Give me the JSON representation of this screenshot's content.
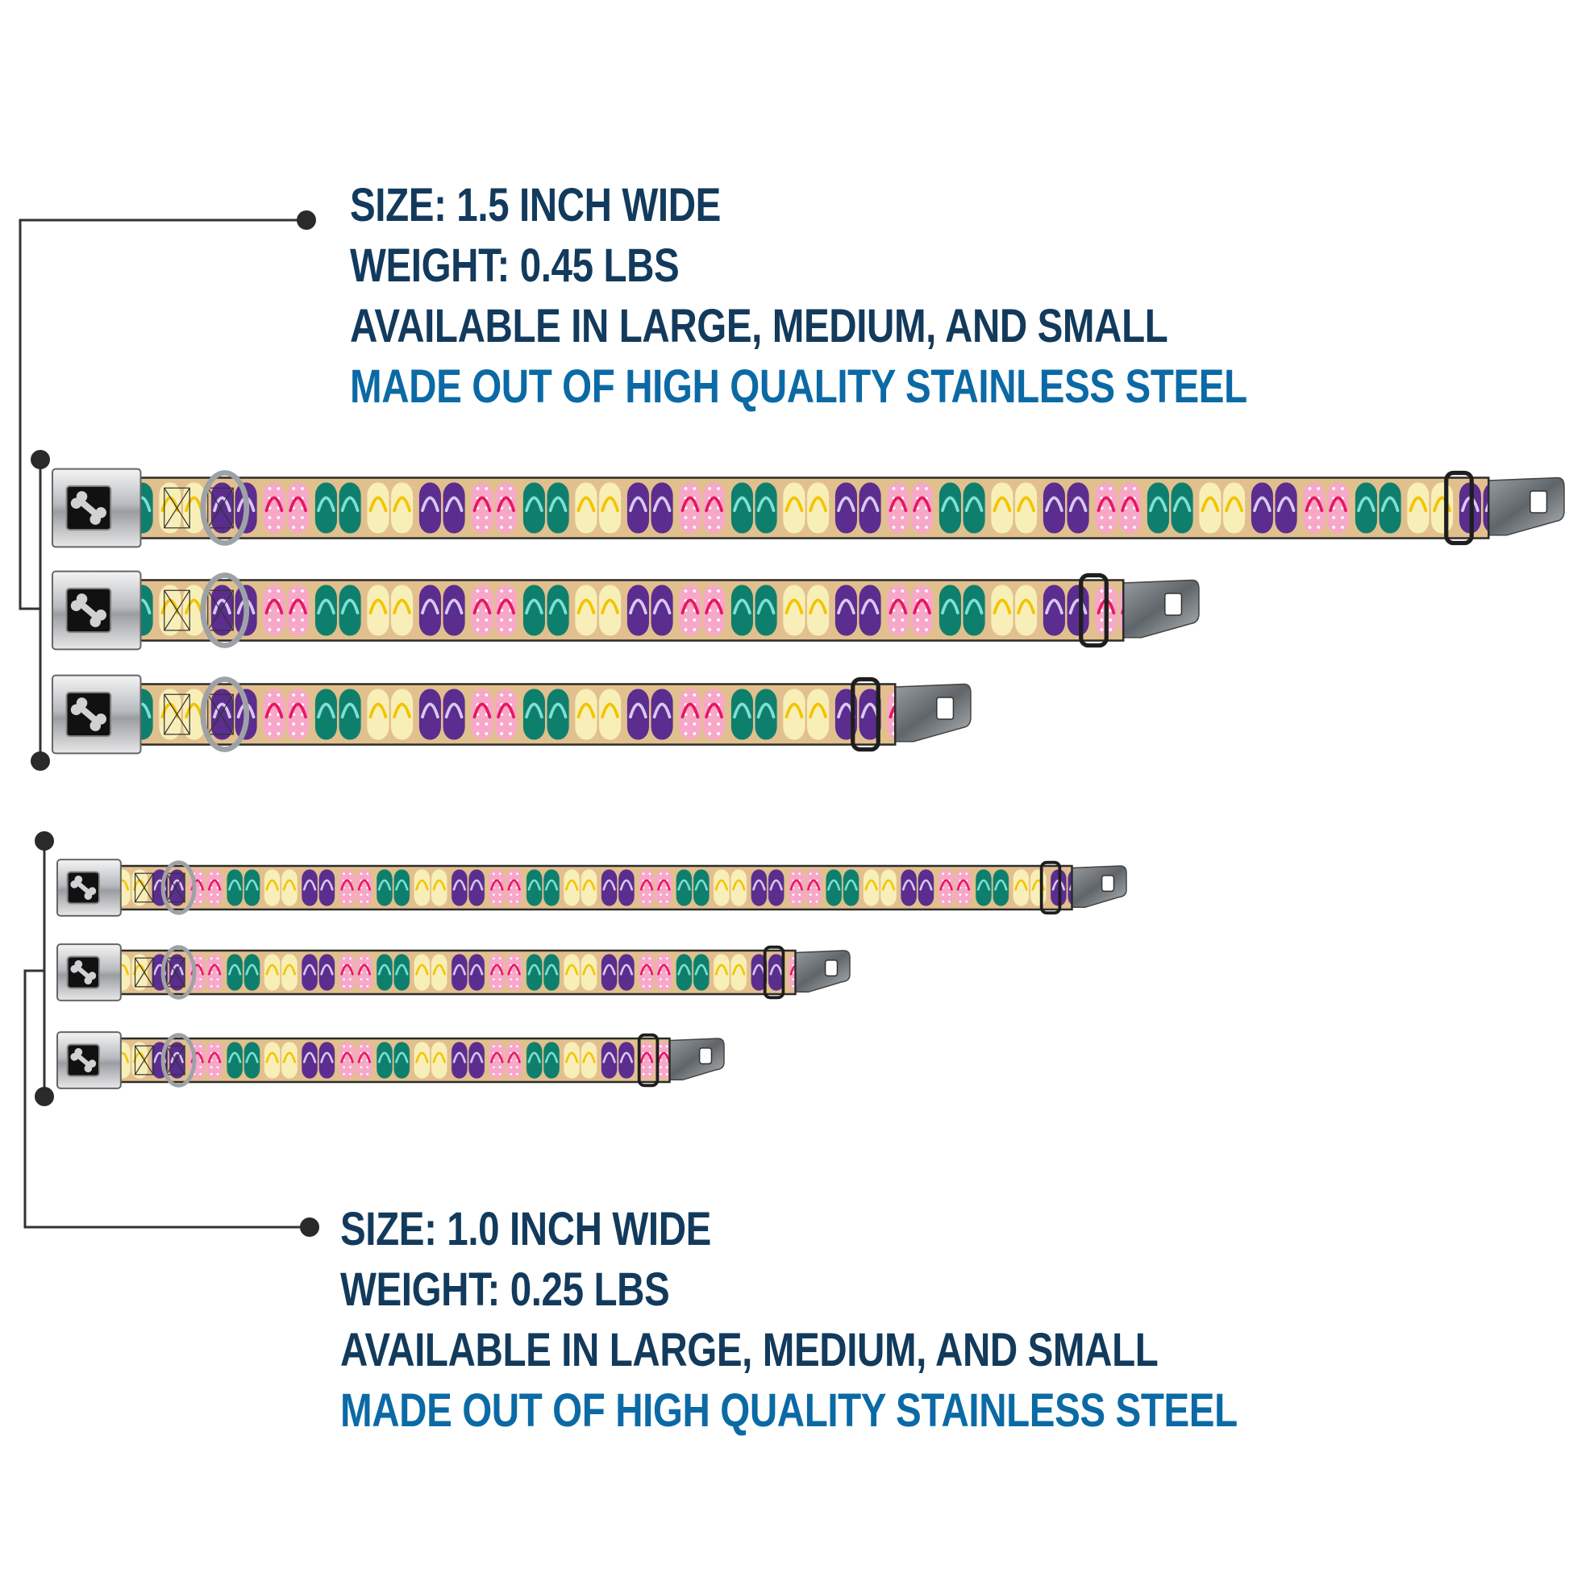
{
  "spec_15": {
    "size": "SIZE: 1.5 INCH WIDE",
    "weight": "WEIGHT: 0.45 LBS",
    "availability": "AVAILABLE IN LARGE, MEDIUM, AND SMALL",
    "material": "MADE OUT OF HIGH QUALITY STAINLESS STEEL"
  },
  "spec_10": {
    "size": "SIZE: 1.0 INCH WIDE",
    "weight": "WEIGHT: 0.25 LBS",
    "availability": "AVAILABLE IN LARGE, MEDIUM, AND SMALL",
    "material": "MADE OUT OF HIGH QUALITY STAINLESS STEEL"
  },
  "collars_15": [
    "large",
    "medium",
    "small"
  ],
  "collars_10": [
    "large",
    "medium",
    "small"
  ],
  "buckle_icon": "bone-icon",
  "colors": {
    "heading": "#123a5c",
    "accent": "#0b6aa5",
    "strap_background": "#e2c08e",
    "purple": "#5b2d8e",
    "pink": "#f7a8c8",
    "teal": "#0f7f6d",
    "cream": "#f8efb8"
  }
}
